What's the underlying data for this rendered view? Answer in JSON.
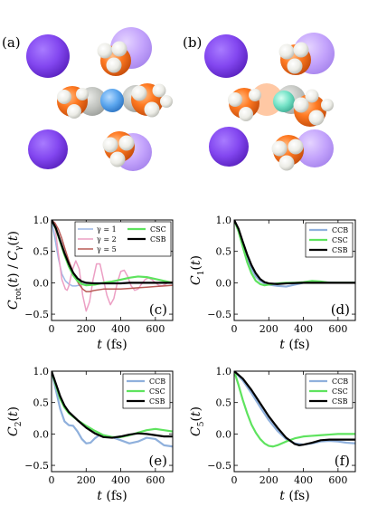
{
  "molecule_panels": [
    {
      "label": "(a)",
      "variant": "a"
    },
    {
      "label": "(b)",
      "variant": "b"
    }
  ],
  "colors": {
    "CCB": "#8fb0dc",
    "CSC": "#5ee35e",
    "CSB": "#000000",
    "gamma_1": "#9cb7e6",
    "gamma_2": "#ec9fc4",
    "gamma_5": "#b85a55",
    "methyl_orange": "#ff7d24",
    "hydrogen": "#f3f3ef",
    "cation_purple": "#8a4ff3",
    "center_blue": "#5aa6ee",
    "center_teal": "#6fe1c7"
  },
  "chart_data": [
    {
      "type": "line",
      "panel_label": "(c)",
      "xlabel": "t (fs)",
      "ylabel": "C_rot(t) / C_γ(t)",
      "xlim": [
        0,
        700
      ],
      "ylim": [
        -0.6,
        1.0
      ],
      "xticks": [
        "0",
        "200",
        "400",
        "600"
      ],
      "yticks": [
        "1.0",
        "0.5",
        "0.0",
        "−0.5"
      ],
      "legend": "top-right, two columns",
      "series": [
        {
          "name": "γ = 1",
          "color_key": "gamma_1",
          "width": 1.5,
          "x": [
            0,
            20,
            40,
            60,
            80,
            100,
            120,
            140,
            160,
            180,
            200,
            250,
            300,
            400,
            500,
            600,
            700
          ],
          "y": [
            1.0,
            0.7,
            0.38,
            0.14,
            0.03,
            -0.02,
            -0.05,
            -0.05,
            -0.04,
            -0.02,
            -0.01,
            0.0,
            0.0,
            0.0,
            0.0,
            0.0,
            0.0
          ]
        },
        {
          "name": "γ = 2",
          "color_key": "gamma_2",
          "width": 1.5,
          "x": [
            0,
            20,
            40,
            60,
            80,
            90,
            100,
            120,
            140,
            160,
            180,
            200,
            220,
            240,
            260,
            280,
            300,
            320,
            340,
            360,
            380,
            400,
            420,
            440,
            460,
            480,
            500,
            520,
            540,
            560,
            580,
            600,
            620,
            640,
            660,
            680,
            700
          ],
          "y": [
            1.0,
            0.88,
            0.45,
            0.05,
            -0.1,
            -0.12,
            -0.05,
            0.2,
            0.35,
            0.22,
            -0.2,
            -0.45,
            -0.3,
            0.05,
            0.3,
            0.3,
            0.05,
            -0.2,
            -0.35,
            -0.25,
            0.0,
            0.18,
            0.2,
            0.1,
            -0.05,
            -0.12,
            -0.1,
            -0.02,
            0.05,
            0.08,
            0.05,
            0.0,
            -0.04,
            -0.05,
            -0.02,
            0.01,
            0.02
          ]
        },
        {
          "name": "γ = 5",
          "color_key": "gamma_5",
          "width": 1.5,
          "x": [
            0,
            20,
            40,
            60,
            80,
            100,
            120,
            140,
            160,
            180,
            200,
            220,
            250,
            300,
            350,
            400,
            450,
            500,
            550,
            600,
            650,
            700
          ],
          "y": [
            1.0,
            0.95,
            0.85,
            0.7,
            0.52,
            0.35,
            0.2,
            0.07,
            -0.03,
            -0.1,
            -0.14,
            -0.14,
            -0.12,
            -0.1,
            -0.1,
            -0.1,
            -0.09,
            -0.08,
            -0.07,
            -0.06,
            -0.05,
            -0.04
          ]
        },
        {
          "name": "CSC",
          "color_key": "CSC",
          "width": 2.2,
          "x": [
            0,
            25,
            50,
            75,
            100,
            125,
            150,
            175,
            200,
            250,
            300,
            350,
            400,
            450,
            500,
            550,
            600,
            650,
            700
          ],
          "y": [
            1.0,
            0.86,
            0.65,
            0.44,
            0.26,
            0.12,
            0.03,
            -0.02,
            -0.04,
            -0.03,
            0.0,
            0.02,
            0.05,
            0.08,
            0.1,
            0.09,
            0.06,
            0.03,
            0.0
          ]
        },
        {
          "name": "CSB",
          "color_key": "CSB",
          "width": 2.2,
          "x": [
            0,
            25,
            50,
            75,
            100,
            125,
            150,
            175,
            200,
            250,
            300,
            350,
            400,
            450,
            500,
            550,
            600,
            650,
            700
          ],
          "y": [
            1.0,
            0.87,
            0.67,
            0.47,
            0.3,
            0.16,
            0.07,
            0.02,
            0.0,
            -0.01,
            -0.01,
            -0.01,
            -0.01,
            0.0,
            0.0,
            0.0,
            0.0,
            0.0,
            0.0
          ]
        }
      ]
    },
    {
      "type": "line",
      "panel_label": "(d)",
      "xlabel": "t (fs)",
      "ylabel": "C_1(t)",
      "xlim": [
        0,
        700
      ],
      "ylim": [
        -0.6,
        1.0
      ],
      "xticks": [
        "0",
        "200",
        "400",
        "600"
      ],
      "yticks": [
        "1.0",
        "0.5",
        "0.0",
        "−0.5"
      ],
      "legend": "top-right",
      "series": [
        {
          "name": "CCB",
          "color_key": "CCB",
          "width": 2.2,
          "x": [
            0,
            25,
            50,
            75,
            100,
            125,
            150,
            175,
            200,
            250,
            300,
            350,
            400,
            450,
            500,
            600,
            700
          ],
          "y": [
            1.0,
            0.84,
            0.62,
            0.4,
            0.22,
            0.1,
            0.03,
            -0.01,
            -0.03,
            -0.05,
            -0.06,
            -0.03,
            0.0,
            0.01,
            0.01,
            0.0,
            0.0
          ]
        },
        {
          "name": "CSC",
          "color_key": "CSC",
          "width": 2.2,
          "x": [
            0,
            25,
            50,
            75,
            100,
            125,
            150,
            175,
            200,
            250,
            300,
            350,
            400,
            450,
            500,
            550,
            600,
            700
          ],
          "y": [
            1.0,
            0.82,
            0.57,
            0.33,
            0.15,
            0.03,
            -0.02,
            -0.04,
            -0.03,
            -0.01,
            0.0,
            0.0,
            0.01,
            0.03,
            0.02,
            0.0,
            0.0,
            0.0
          ]
        },
        {
          "name": "CSB",
          "color_key": "CSB",
          "width": 2.2,
          "x": [
            0,
            25,
            50,
            75,
            100,
            125,
            150,
            175,
            200,
            250,
            300,
            400,
            500,
            600,
            700
          ],
          "y": [
            1.0,
            0.86,
            0.65,
            0.45,
            0.28,
            0.15,
            0.06,
            0.01,
            -0.01,
            -0.02,
            -0.01,
            0.0,
            0.0,
            0.0,
            0.0
          ]
        }
      ]
    },
    {
      "type": "line",
      "panel_label": "(e)",
      "xlabel": "t (fs)",
      "ylabel": "C_2(t)",
      "xlim": [
        0,
        700
      ],
      "ylim": [
        -0.6,
        1.0
      ],
      "xticks": [
        "0",
        "200",
        "400",
        "600"
      ],
      "yticks": [
        "1.0",
        "0.5",
        "0.0",
        "−0.5"
      ],
      "legend": "top-right",
      "series": [
        {
          "name": "CCB",
          "color_key": "CCB",
          "width": 2.2,
          "x": [
            0,
            25,
            50,
            75,
            100,
            125,
            150,
            175,
            200,
            225,
            250,
            275,
            300,
            350,
            400,
            450,
            500,
            550,
            600,
            650,
            700
          ],
          "y": [
            1.0,
            0.7,
            0.4,
            0.2,
            0.14,
            0.13,
            0.04,
            -0.08,
            -0.15,
            -0.14,
            -0.07,
            -0.02,
            -0.02,
            -0.05,
            -0.1,
            -0.15,
            -0.12,
            -0.06,
            -0.08,
            -0.18,
            -0.2
          ]
        },
        {
          "name": "CSC",
          "color_key": "CSC",
          "width": 2.2,
          "x": [
            0,
            25,
            50,
            75,
            100,
            150,
            200,
            250,
            300,
            350,
            400,
            450,
            500,
            550,
            600,
            650,
            700
          ],
          "y": [
            1.0,
            0.77,
            0.56,
            0.42,
            0.33,
            0.22,
            0.13,
            0.05,
            -0.02,
            -0.05,
            -0.05,
            -0.02,
            0.02,
            0.06,
            0.08,
            0.06,
            0.04
          ]
        },
        {
          "name": "CSB",
          "color_key": "CSB",
          "width": 2.2,
          "x": [
            0,
            25,
            50,
            75,
            100,
            150,
            200,
            250,
            300,
            350,
            400,
            450,
            500,
            550,
            600,
            650,
            700
          ],
          "y": [
            1.0,
            0.8,
            0.6,
            0.45,
            0.35,
            0.22,
            0.1,
            0.01,
            -0.05,
            -0.06,
            -0.04,
            -0.01,
            0.01,
            0.0,
            -0.02,
            -0.04,
            -0.04
          ]
        }
      ]
    },
    {
      "type": "line",
      "panel_label": "(f)",
      "xlabel": "t (fs)",
      "ylabel": "C_5(t)",
      "xlim": [
        0,
        700
      ],
      "ylim": [
        -0.6,
        1.0
      ],
      "xticks": [
        "0",
        "200",
        "400",
        "600"
      ],
      "yticks": [
        "1.0",
        "0.5",
        "0.0",
        "−0.5"
      ],
      "legend": "top-right",
      "series": [
        {
          "name": "CCB",
          "color_key": "CCB",
          "width": 2.2,
          "x": [
            0,
            50,
            100,
            150,
            200,
            250,
            300,
            350,
            400,
            450,
            500,
            550,
            600,
            650,
            700
          ],
          "y": [
            1.0,
            0.85,
            0.65,
            0.43,
            0.22,
            0.05,
            -0.08,
            -0.15,
            -0.17,
            -0.15,
            -0.12,
            -0.11,
            -0.12,
            -0.14,
            -0.15
          ]
        },
        {
          "name": "CSC",
          "color_key": "CSC",
          "width": 2.2,
          "x": [
            0,
            25,
            50,
            75,
            100,
            125,
            150,
            175,
            200,
            225,
            250,
            300,
            350,
            400,
            450,
            500,
            550,
            600,
            650,
            700
          ],
          "y": [
            1.0,
            0.78,
            0.54,
            0.33,
            0.15,
            0.02,
            -0.08,
            -0.15,
            -0.19,
            -0.2,
            -0.18,
            -0.12,
            -0.07,
            -0.04,
            -0.03,
            -0.02,
            -0.01,
            0.0,
            0.0,
            0.0
          ]
        },
        {
          "name": "CSB",
          "color_key": "CSB",
          "width": 2.2,
          "x": [
            0,
            50,
            100,
            150,
            200,
            250,
            300,
            350,
            375,
            400,
            450,
            500,
            550,
            600,
            650,
            700
          ],
          "y": [
            1.0,
            0.88,
            0.7,
            0.49,
            0.28,
            0.1,
            -0.06,
            -0.16,
            -0.18,
            -0.17,
            -0.14,
            -0.1,
            -0.09,
            -0.09,
            -0.09,
            -0.09
          ]
        }
      ]
    }
  ]
}
